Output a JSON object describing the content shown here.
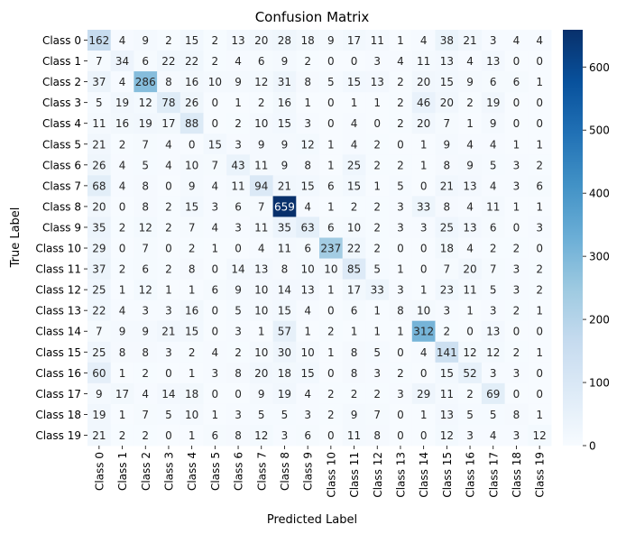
{
  "chart_data": {
    "type": "heatmap",
    "title": "Confusion Matrix",
    "xlabel": "Predicted Label",
    "ylabel": "True Label",
    "x_categories": [
      "Class 0",
      "Class 1",
      "Class 2",
      "Class 3",
      "Class 4",
      "Class 5",
      "Class 6",
      "Class 7",
      "Class 8",
      "Class 9",
      "Class 10",
      "Class 11",
      "Class 12",
      "Class 13",
      "Class 14",
      "Class 15",
      "Class 16",
      "Class 17",
      "Class 18",
      "Class 19"
    ],
    "y_categories": [
      "Class 0",
      "Class 1",
      "Class 2",
      "Class 3",
      "Class 4",
      "Class 5",
      "Class 6",
      "Class 7",
      "Class 8",
      "Class 9",
      "Class 10",
      "Class 11",
      "Class 12",
      "Class 13",
      "Class 14",
      "Class 15",
      "Class 16",
      "Class 17",
      "Class 18",
      "Class 19"
    ],
    "matrix": [
      [
        162,
        4,
        9,
        2,
        15,
        2,
        13,
        20,
        28,
        18,
        9,
        17,
        11,
        1,
        4,
        38,
        21,
        3,
        4,
        4
      ],
      [
        7,
        34,
        6,
        22,
        22,
        2,
        4,
        6,
        9,
        2,
        0,
        0,
        3,
        4,
        11,
        13,
        4,
        13,
        0,
        0
      ],
      [
        37,
        4,
        286,
        8,
        16,
        10,
        9,
        12,
        31,
        8,
        5,
        15,
        13,
        2,
        20,
        15,
        9,
        6,
        6,
        1
      ],
      [
        5,
        19,
        12,
        78,
        26,
        0,
        1,
        2,
        16,
        1,
        0,
        1,
        1,
        2,
        46,
        20,
        2,
        19,
        0,
        0
      ],
      [
        11,
        16,
        19,
        17,
        88,
        0,
        2,
        10,
        15,
        3,
        0,
        4,
        0,
        2,
        20,
        7,
        1,
        9,
        0,
        0
      ],
      [
        21,
        2,
        7,
        4,
        0,
        15,
        3,
        9,
        9,
        12,
        1,
        4,
        2,
        0,
        1,
        9,
        4,
        4,
        1,
        1
      ],
      [
        26,
        4,
        5,
        4,
        10,
        7,
        43,
        11,
        9,
        8,
        1,
        25,
        2,
        2,
        1,
        8,
        9,
        5,
        3,
        2
      ],
      [
        68,
        4,
        8,
        0,
        9,
        4,
        11,
        94,
        21,
        15,
        6,
        15,
        1,
        5,
        0,
        21,
        13,
        4,
        3,
        6
      ],
      [
        20,
        0,
        8,
        2,
        15,
        3,
        6,
        7,
        659,
        4,
        1,
        2,
        2,
        3,
        33,
        8,
        4,
        11,
        1,
        1
      ],
      [
        35,
        2,
        12,
        2,
        7,
        4,
        3,
        11,
        35,
        63,
        6,
        10,
        2,
        3,
        3,
        25,
        13,
        6,
        0,
        3
      ],
      [
        29,
        0,
        7,
        0,
        2,
        1,
        0,
        4,
        11,
        6,
        237,
        22,
        2,
        0,
        0,
        18,
        4,
        2,
        2,
        0
      ],
      [
        37,
        2,
        6,
        2,
        8,
        0,
        14,
        13,
        8,
        10,
        10,
        85,
        5,
        1,
        0,
        7,
        20,
        7,
        3,
        2
      ],
      [
        25,
        1,
        12,
        1,
        1,
        6,
        9,
        10,
        14,
        13,
        1,
        17,
        33,
        3,
        1,
        23,
        11,
        5,
        3,
        2
      ],
      [
        22,
        4,
        3,
        3,
        16,
        0,
        5,
        10,
        15,
        4,
        0,
        6,
        1,
        8,
        10,
        3,
        1,
        3,
        2,
        1
      ],
      [
        7,
        9,
        9,
        21,
        15,
        0,
        3,
        1,
        57,
        1,
        2,
        1,
        1,
        1,
        312,
        2,
        0,
        13,
        0,
        0
      ],
      [
        25,
        8,
        8,
        3,
        2,
        4,
        2,
        10,
        30,
        10,
        1,
        8,
        5,
        0,
        4,
        141,
        12,
        12,
        2,
        1
      ],
      [
        60,
        1,
        2,
        0,
        1,
        3,
        8,
        20,
        18,
        15,
        0,
        8,
        3,
        2,
        0,
        15,
        52,
        3,
        3,
        0
      ],
      [
        9,
        17,
        4,
        14,
        18,
        0,
        0,
        9,
        19,
        4,
        2,
        2,
        2,
        3,
        29,
        11,
        2,
        69,
        0,
        0
      ],
      [
        19,
        1,
        7,
        5,
        10,
        1,
        3,
        5,
        5,
        3,
        2,
        9,
        7,
        0,
        1,
        13,
        5,
        5,
        8,
        1
      ],
      [
        21,
        2,
        2,
        0,
        1,
        6,
        8,
        12,
        3,
        6,
        0,
        11,
        8,
        0,
        0,
        12,
        3,
        4,
        3,
        12
      ]
    ],
    "vmin": 0,
    "vmax": 659,
    "colormap": "Blues",
    "colorbar_ticks": [
      "0",
      "100",
      "200",
      "300",
      "400",
      "500",
      "600"
    ],
    "colorbar_tick_values": [
      0,
      100,
      200,
      300,
      400,
      500,
      600
    ],
    "annotated": true,
    "grid": false
  }
}
